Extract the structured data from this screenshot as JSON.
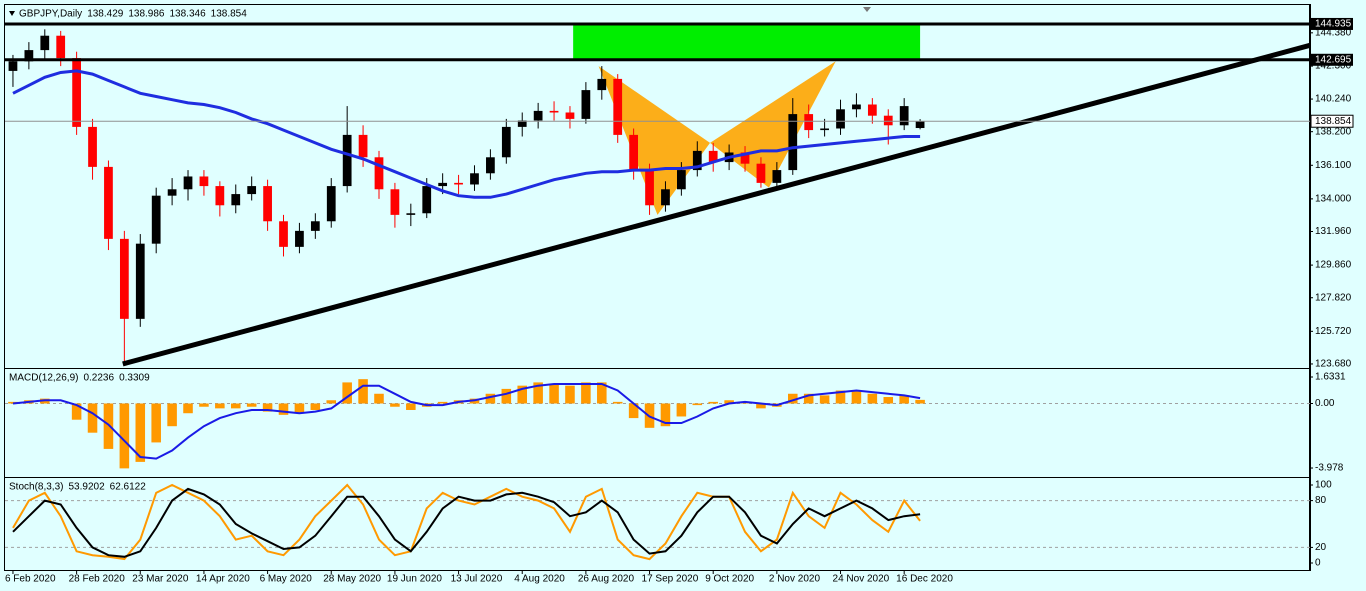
{
  "chart_data": [
    {
      "type": "candlestick",
      "title": "GBPJPY,Daily",
      "open": [
        142.0,
        142.6,
        143.3,
        144.2,
        142.8,
        138.5,
        136.0,
        131.5,
        126.5,
        131.2,
        134.2,
        134.6,
        135.4,
        134.8,
        133.6,
        134.3,
        134.8,
        132.6,
        131.0,
        132.0,
        132.6,
        134.8,
        138.0,
        136.6,
        134.6,
        133.0,
        133.1,
        134.8,
        135.0,
        134.9,
        135.6,
        136.6,
        138.5,
        138.9,
        139.5,
        139.4,
        139.0,
        140.8,
        141.5,
        138.0,
        135.8,
        133.6,
        134.6,
        135.8,
        137.0,
        136.3,
        136.9,
        136.2,
        135.0,
        135.8,
        139.3,
        138.3,
        138.4,
        139.6,
        139.9,
        139.2,
        138.6,
        138.429
      ],
      "high": [
        143.0,
        143.8,
        144.6,
        144.5,
        143.2,
        139.0,
        136.4,
        132.0,
        131.8,
        134.7,
        135.3,
        135.8,
        135.8,
        135.1,
        134.9,
        135.4,
        135.2,
        133.0,
        132.5,
        133.1,
        135.3,
        139.8,
        138.6,
        137.0,
        135.0,
        133.7,
        135.3,
        135.6,
        135.5,
        136.1,
        137.1,
        139.0,
        139.4,
        140.0,
        140.1,
        139.8,
        141.3,
        142.3,
        141.8,
        138.4,
        136.2,
        135.1,
        136.3,
        137.6,
        137.5,
        137.4,
        137.3,
        136.6,
        136.3,
        140.3,
        139.9,
        139.0,
        140.2,
        140.6,
        140.3,
        139.6,
        140.3,
        138.986
      ],
      "low": [
        141.0,
        142.1,
        142.7,
        142.3,
        138.0,
        135.2,
        130.8,
        123.68,
        126.0,
        130.6,
        133.6,
        133.9,
        134.2,
        132.9,
        133.1,
        133.9,
        132.0,
        130.4,
        130.6,
        131.5,
        132.2,
        134.4,
        136.0,
        134.0,
        132.2,
        132.3,
        132.8,
        134.3,
        134.3,
        134.5,
        135.2,
        136.2,
        137.9,
        138.4,
        138.9,
        138.4,
        138.7,
        140.2,
        137.5,
        135.2,
        133.0,
        133.2,
        134.2,
        135.4,
        135.7,
        135.8,
        135.7,
        134.7,
        134.8,
        135.5,
        137.8,
        137.9,
        138.0,
        139.1,
        138.7,
        137.4,
        138.3,
        138.346
      ],
      "close": [
        142.6,
        143.3,
        144.2,
        142.8,
        138.5,
        136.0,
        131.5,
        126.5,
        131.2,
        134.2,
        134.6,
        135.4,
        134.8,
        133.6,
        134.3,
        134.8,
        132.6,
        131.0,
        132.0,
        132.6,
        134.8,
        138.0,
        136.6,
        134.6,
        133.0,
        133.1,
        134.8,
        135.0,
        134.9,
        135.6,
        136.6,
        138.5,
        138.9,
        139.5,
        139.4,
        139.0,
        140.8,
        141.5,
        138.0,
        135.8,
        133.6,
        134.6,
        135.8,
        137.0,
        136.3,
        136.9,
        136.2,
        135.0,
        135.8,
        139.3,
        138.3,
        138.4,
        139.6,
        139.9,
        139.2,
        138.6,
        139.8,
        138.854
      ],
      "up_color": "#000000",
      "down_color": "#ff0000",
      "moving_average": {
        "color": "#1f2de0",
        "values": [
          140.6,
          141.1,
          141.6,
          141.9,
          142.0,
          141.8,
          141.4,
          141.0,
          140.6,
          140.4,
          140.2,
          140.0,
          139.9,
          139.7,
          139.4,
          139.0,
          138.7,
          138.3,
          137.9,
          137.5,
          137.1,
          136.8,
          136.5,
          136.1,
          135.7,
          135.3,
          134.9,
          134.5,
          134.2,
          134.1,
          134.1,
          134.3,
          134.6,
          134.9,
          135.2,
          135.4,
          135.6,
          135.7,
          135.7,
          135.8,
          135.8,
          135.9,
          135.9,
          136.0,
          136.3,
          136.6,
          136.8,
          137.0,
          137.0,
          137.2,
          137.3,
          137.4,
          137.5,
          137.6,
          137.7,
          137.8,
          137.9,
          137.9
        ]
      },
      "levels": [
        144.935,
        142.695
      ],
      "zone": {
        "color": "#00ee00",
        "x": [
          35.2,
          57.0
        ],
        "y": [
          142.695,
          144.935
        ]
      },
      "pattern": {
        "color": "#ffa500",
        "x": [
          36.8,
          40.5,
          43.8,
          47.5,
          51.7
        ],
        "y": [
          142.3,
          133.0,
          137.5,
          134.7,
          142.6
        ]
      },
      "trendline": {
        "color": "#000000",
        "x": [
          6.9,
          81.5
        ],
        "y": [
          123.68,
          143.6
        ]
      },
      "xlim": [
        -0.5,
        81.5
      ],
      "xticks": [
        {
          "value": 0,
          "label": "6 Feb 2020"
        },
        {
          "value": 4,
          "label": "28 Feb 2020"
        },
        {
          "value": 8,
          "label": "23 Mar 2020"
        },
        {
          "value": 12,
          "label": "14 Apr 2020"
        },
        {
          "value": 16,
          "label": "6 May 2020"
        },
        {
          "value": 20,
          "label": "28 May 2020"
        },
        {
          "value": 24,
          "label": "19 Jun 2020"
        },
        {
          "value": 28,
          "label": "13 Jul 2020"
        },
        {
          "value": 32,
          "label": "4 Aug 2020"
        },
        {
          "value": 36,
          "label": "26 Aug 2020"
        },
        {
          "value": 40,
          "label": "17 Sep 2020"
        },
        {
          "value": 44,
          "label": "9 Oct 2020"
        },
        {
          "value": 48,
          "label": "2 Nov 2020"
        },
        {
          "value": 52,
          "label": "24 Nov 2020"
        },
        {
          "value": 56,
          "label": "16 Dec 2020"
        }
      ],
      "ylim": [
        123.49,
        146.12
      ],
      "yticks": [
        {
          "value": 144.38,
          "label": "144.380"
        },
        {
          "value": 142.3,
          "label": "142.300"
        },
        {
          "value": 140.24,
          "label": "140.240"
        },
        {
          "value": 138.2,
          "label": "138.200"
        },
        {
          "value": 136.1,
          "label": "136.100"
        },
        {
          "value": 134.0,
          "label": "134.000"
        },
        {
          "value": 131.96,
          "label": "131.960"
        },
        {
          "value": 129.86,
          "label": "129.860"
        },
        {
          "value": 127.82,
          "label": "127.820"
        },
        {
          "value": 125.72,
          "label": "125.720"
        },
        {
          "value": 123.68,
          "label": "123.680"
        }
      ]
    },
    {
      "type": "macd",
      "title": "MACD(12,26,9)",
      "histogram": {
        "color": "#ff9900",
        "values": [
          0.1,
          0.2,
          0.3,
          0.0,
          -1.0,
          -1.8,
          -2.8,
          -4.0,
          -3.6,
          -2.4,
          -1.4,
          -0.6,
          -0.2,
          -0.3,
          -0.3,
          -0.2,
          -0.5,
          -0.7,
          -0.6,
          -0.4,
          0.2,
          1.3,
          1.5,
          0.6,
          -0.2,
          -0.4,
          -0.2,
          0.1,
          0.2,
          0.3,
          0.6,
          0.9,
          1.1,
          1.3,
          1.2,
          1.1,
          1.3,
          1.3,
          0.1,
          -0.9,
          -1.5,
          -1.4,
          -0.8,
          -0.1,
          0.1,
          0.2,
          0.1,
          -0.3,
          -0.2,
          0.6,
          0.6,
          0.5,
          0.8,
          0.8,
          0.6,
          0.4,
          0.5,
          0.2236
        ]
      },
      "signal": {
        "color": "#1a1ae6",
        "values": [
          0.0,
          0.1,
          0.2,
          0.2,
          -0.1,
          -0.6,
          -1.3,
          -2.3,
          -3.3,
          -3.4,
          -2.9,
          -2.1,
          -1.4,
          -0.9,
          -0.6,
          -0.4,
          -0.4,
          -0.5,
          -0.6,
          -0.5,
          -0.3,
          0.4,
          1.1,
          1.1,
          0.6,
          0.1,
          -0.1,
          -0.1,
          0.1,
          0.2,
          0.4,
          0.6,
          0.9,
          1.1,
          1.2,
          1.2,
          1.2,
          1.2,
          0.8,
          0.0,
          -0.8,
          -1.2,
          -1.2,
          -0.8,
          -0.3,
          0.0,
          0.1,
          0.0,
          -0.1,
          0.2,
          0.5,
          0.6,
          0.7,
          0.8,
          0.7,
          0.6,
          0.5,
          0.3309
        ]
      },
      "ylim": [
        -4.47,
        2.065
      ],
      "yticks": [
        1.6331,
        {
          "value": 0,
          "label": "0.00"
        },
        -3.978
      ]
    },
    {
      "type": "line",
      "title": "Stoch(8,3,3)",
      "series": [
        {
          "color": "#ff9900",
          "values": [
            45,
            80,
            90,
            60,
            15,
            10,
            8,
            5,
            30,
            90,
            100,
            90,
            80,
            60,
            30,
            35,
            15,
            10,
            30,
            60,
            80,
            100,
            75,
            30,
            10,
            15,
            70,
            90,
            80,
            75,
            85,
            95,
            85,
            80,
            70,
            40,
            85,
            95,
            30,
            10,
            5,
            25,
            60,
            90,
            85,
            85,
            40,
            15,
            30,
            90,
            60,
            45,
            90,
            75,
            55,
            40,
            80,
            53.9202
          ]
        },
        {
          "color": "#000000",
          "values": [
            40,
            60,
            80,
            75,
            45,
            20,
            10,
            8,
            15,
            45,
            80,
            95,
            88,
            75,
            50,
            38,
            28,
            18,
            20,
            35,
            60,
            85,
            85,
            60,
            30,
            15,
            40,
            70,
            85,
            80,
            80,
            88,
            90,
            85,
            78,
            60,
            65,
            80,
            65,
            30,
            12,
            15,
            35,
            65,
            85,
            85,
            65,
            35,
            25,
            50,
            70,
            60,
            70,
            80,
            70,
            55,
            60,
            62.6122
          ]
        }
      ],
      "ylim": [
        -7.7,
        107.7
      ],
      "yticks": [
        100,
        80,
        20,
        0
      ],
      "levels": [
        80,
        20
      ]
    }
  ]
}
